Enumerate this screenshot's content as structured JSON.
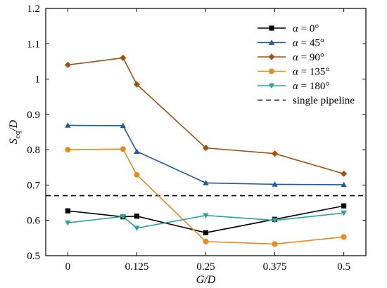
{
  "chart_data": {
    "type": "line",
    "title": "",
    "xlabel": "G/D",
    "ylabel": "S_eq/D",
    "x": [
      0,
      0.1,
      0.125,
      0.25,
      0.375,
      0.5
    ],
    "x_ticks": [
      0,
      0.125,
      0.25,
      0.375,
      0.5
    ],
    "x_tick_labels": [
      "0",
      "0.125",
      "0.25",
      "0.375",
      "0.5"
    ],
    "xlim": [
      -0.04,
      0.54
    ],
    "ylim": [
      0.5,
      1.2
    ],
    "y_ticks": [
      0.5,
      0.6,
      0.7,
      0.8,
      0.9,
      1.0,
      1.1,
      1.2
    ],
    "y_tick_labels": [
      "0.5",
      "0.6",
      "0.7",
      "0.8",
      "0.9",
      "1",
      "1.1",
      "1.2"
    ],
    "grid": false,
    "legend_position": "top-right",
    "series": [
      {
        "name": "α = 0°",
        "color": "#000000",
        "marker": "square",
        "values": [
          0.627,
          0.61,
          0.612,
          0.565,
          0.603,
          0.641
        ]
      },
      {
        "name": "α = 45°",
        "color": "#1f5aa6",
        "marker": "triangle-up",
        "values": [
          0.869,
          0.868,
          0.795,
          0.706,
          0.702,
          0.701
        ]
      },
      {
        "name": "α = 90°",
        "color": "#a0520f",
        "marker": "diamond",
        "values": [
          1.04,
          1.06,
          0.985,
          0.805,
          0.789,
          0.732
        ]
      },
      {
        "name": "α = 135°",
        "color": "#e88a1e",
        "marker": "circle",
        "values": [
          0.8,
          0.802,
          0.729,
          0.54,
          0.533,
          0.553
        ]
      },
      {
        "name": "α = 180°",
        "color": "#2aa3a3",
        "marker": "triangle-down",
        "values": [
          0.593,
          0.611,
          0.578,
          0.614,
          0.6,
          0.621
        ]
      }
    ],
    "reference_lines": [
      {
        "name": "single pipeline",
        "y": 0.67,
        "color": "#000000",
        "style": "dashed"
      }
    ]
  }
}
